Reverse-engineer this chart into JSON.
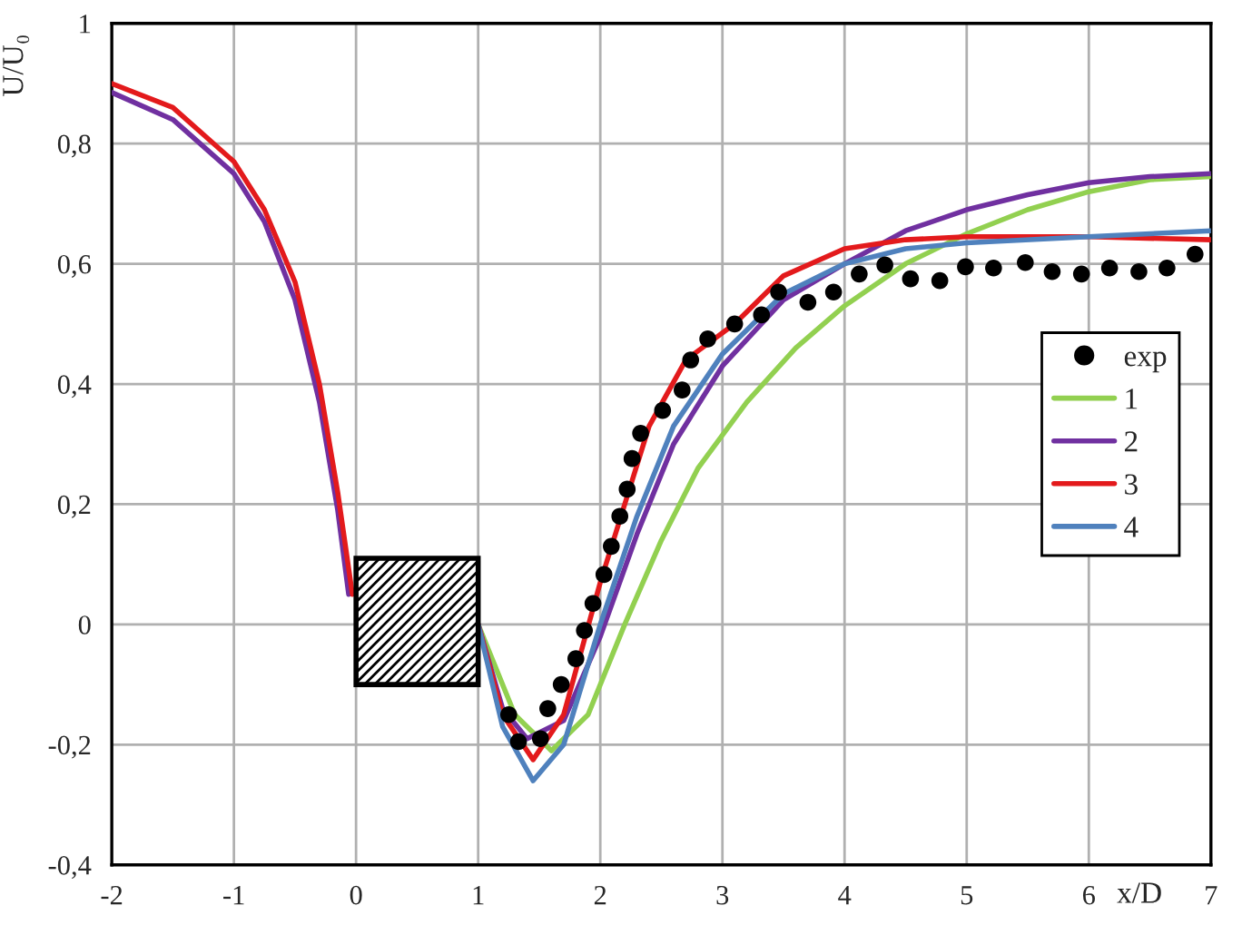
{
  "chart_data": {
    "type": "line",
    "xlabel": "x/D",
    "ylabel": "U/U₀",
    "xlim": [
      -2,
      7
    ],
    "ylim": [
      -0.4,
      1
    ],
    "xticks": [
      -2,
      -1,
      0,
      1,
      2,
      3,
      4,
      5,
      6,
      7
    ],
    "yticks": [
      {
        "value": -0.4,
        "label": "-0,4"
      },
      {
        "value": -0.2,
        "label": "-0,2"
      },
      0,
      {
        "value": 0.2,
        "label": "0,2"
      },
      {
        "value": 0.4,
        "label": "0,4"
      },
      {
        "value": 0.6,
        "label": "0,6"
      },
      {
        "value": 0.8,
        "label": "0,8"
      },
      1
    ],
    "grid": true,
    "legend": "right",
    "series": [
      {
        "name": "exp",
        "type": "scatter",
        "marker": "circle",
        "color": "#000000",
        "x": [
          1.25,
          1.33,
          1.51,
          1.57,
          1.68,
          1.8,
          1.87,
          1.94,
          2.03,
          2.09,
          2.16,
          2.22,
          2.26,
          2.33,
          2.51,
          2.67,
          2.74,
          2.88,
          3.1,
          3.32,
          3.46,
          3.7,
          3.91,
          4.12,
          4.33,
          4.54,
          4.78,
          4.99,
          5.22,
          5.48,
          5.7,
          5.94,
          6.17,
          6.41,
          6.64,
          6.87
        ],
        "values": [
          -0.15,
          -0.195,
          -0.19,
          -0.14,
          -0.1,
          -0.057,
          -0.01,
          0.035,
          0.083,
          0.13,
          0.18,
          0.225,
          0.276,
          0.318,
          0.356,
          0.39,
          0.44,
          0.475,
          0.5,
          0.515,
          0.553,
          0.536,
          0.553,
          0.583,
          0.598,
          0.575,
          0.572,
          0.595,
          0.593,
          0.602,
          0.587,
          0.583,
          0.593,
          0.587,
          0.593,
          0.616
        ]
      },
      {
        "name": "1",
        "color": "#92d050",
        "x": [
          1,
          1.3,
          1.6,
          1.9,
          2.2,
          2.5,
          2.8,
          3.2,
          3.6,
          4,
          4.5,
          5,
          5.5,
          6,
          6.5,
          7
        ],
        "values": [
          0,
          -0.15,
          -0.21,
          -0.15,
          0.0,
          0.14,
          0.26,
          0.37,
          0.46,
          0.53,
          0.6,
          0.65,
          0.69,
          0.72,
          0.74,
          0.745
        ]
      },
      {
        "name": "2",
        "color": "#7030a0",
        "x": [
          -2,
          -1.5,
          -1,
          -0.75,
          -0.5,
          -0.3,
          -0.15,
          -0.06,
          null,
          1,
          1.2,
          1.4,
          1.7,
          2.0,
          2.3,
          2.6,
          3,
          3.5,
          4,
          4.5,
          5,
          5.5,
          6,
          6.5,
          7
        ],
        "values": [
          0.885,
          0.84,
          0.75,
          0.67,
          0.54,
          0.37,
          0.19,
          0.05,
          null,
          0,
          -0.14,
          -0.19,
          -0.16,
          -0.02,
          0.15,
          0.3,
          0.43,
          0.54,
          0.6,
          0.655,
          0.69,
          0.715,
          0.735,
          0.745,
          0.75
        ]
      },
      {
        "name": "3",
        "color": "#e31a1c",
        "x": [
          -2,
          -1.5,
          -1,
          -0.75,
          -0.5,
          -0.3,
          -0.15,
          -0.03,
          null,
          1,
          1.2,
          1.45,
          1.7,
          2.0,
          2.2,
          2.4,
          2.7,
          3.1,
          3.5,
          4,
          4.5,
          5,
          6,
          7
        ],
        "values": [
          0.9,
          0.86,
          0.77,
          0.69,
          0.57,
          0.4,
          0.22,
          0.05,
          null,
          0,
          -0.15,
          -0.225,
          -0.15,
          0.07,
          0.2,
          0.33,
          0.44,
          0.5,
          0.58,
          0.625,
          0.64,
          0.645,
          0.645,
          0.64
        ]
      },
      {
        "name": "4",
        "color": "#4f81bd",
        "x": [
          1,
          1.2,
          1.45,
          1.7,
          2.0,
          2.3,
          2.6,
          3,
          3.5,
          4,
          4.5,
          5,
          6,
          7
        ],
        "values": [
          0,
          -0.17,
          -0.26,
          -0.2,
          0.0,
          0.18,
          0.33,
          0.45,
          0.55,
          0.6,
          0.625,
          0.635,
          0.645,
          0.655
        ]
      }
    ]
  }
}
